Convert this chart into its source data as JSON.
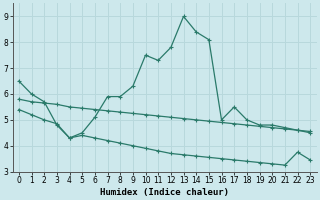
{
  "xlabel": "Humidex (Indice chaleur)",
  "background_color": "#cde8ec",
  "grid_color": "#b8d8dc",
  "line_color": "#2a7a6a",
  "xlim": [
    -0.5,
    23.5
  ],
  "ylim": [
    3.0,
    9.5
  ],
  "yticks": [
    3,
    4,
    5,
    6,
    7,
    8,
    9
  ],
  "xticks": [
    0,
    1,
    2,
    3,
    4,
    5,
    6,
    7,
    8,
    9,
    10,
    11,
    12,
    13,
    14,
    15,
    16,
    17,
    18,
    19,
    20,
    21,
    22,
    23
  ],
  "series1_x": [
    0,
    1,
    2,
    3,
    4,
    5,
    6,
    7,
    8,
    9,
    10,
    11,
    12,
    13,
    14,
    15,
    16,
    17,
    18,
    19,
    20,
    21,
    22,
    23
  ],
  "series1_y": [
    6.5,
    6.0,
    5.7,
    4.8,
    4.3,
    4.5,
    5.1,
    5.9,
    5.9,
    6.3,
    7.5,
    7.3,
    7.8,
    9.0,
    8.4,
    8.1,
    5.0,
    5.5,
    5.0,
    4.8,
    4.8,
    4.7,
    4.6,
    4.5
  ],
  "series2_x": [
    0,
    1,
    2,
    3,
    4,
    5,
    6,
    7,
    8,
    9,
    10,
    11,
    12,
    13,
    14,
    15,
    16,
    17,
    18,
    19,
    20,
    21,
    22,
    23
  ],
  "series2_y": [
    5.8,
    5.7,
    5.65,
    5.6,
    5.5,
    5.45,
    5.4,
    5.35,
    5.3,
    5.25,
    5.2,
    5.15,
    5.1,
    5.05,
    5.0,
    4.95,
    4.9,
    4.85,
    4.8,
    4.75,
    4.7,
    4.65,
    4.6,
    4.55
  ],
  "series3_x": [
    0,
    1,
    2,
    3,
    4,
    5,
    6,
    7,
    8,
    9,
    10,
    11,
    12,
    13,
    14,
    15,
    16,
    17,
    18,
    19,
    20,
    21,
    22,
    23
  ],
  "series3_y": [
    5.4,
    5.2,
    5.0,
    4.85,
    4.3,
    4.4,
    4.3,
    4.2,
    4.1,
    4.0,
    3.9,
    3.8,
    3.7,
    3.65,
    3.6,
    3.55,
    3.5,
    3.45,
    3.4,
    3.35,
    3.3,
    3.25,
    3.75,
    3.45
  ]
}
